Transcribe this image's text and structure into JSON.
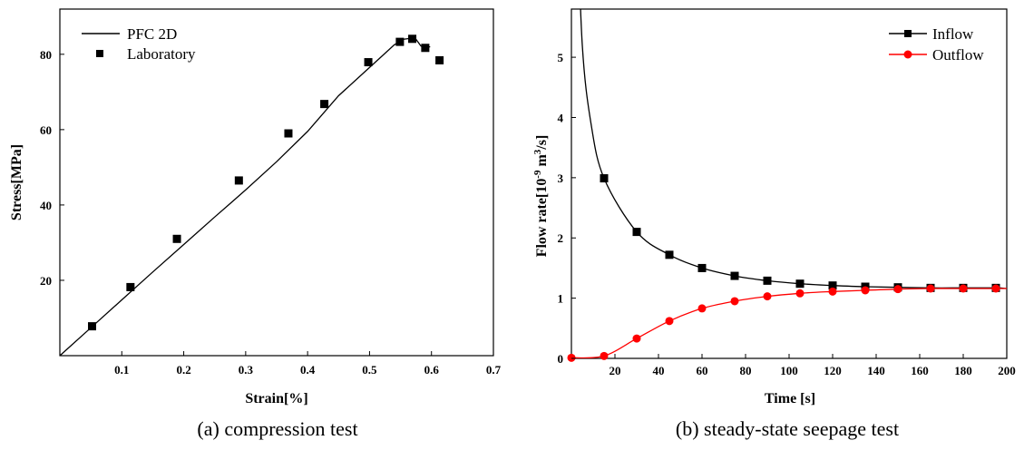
{
  "chart_data": [
    {
      "type": "line+scatter",
      "caption": "(a) compression test",
      "xlabel": "Strain[%]",
      "ylabel": "Stress[MPa]",
      "xlim": [
        0,
        0.7
      ],
      "ylim": [
        0,
        92
      ],
      "xticks": [
        "0.1",
        "0.2",
        "0.3",
        "0.4",
        "0.5",
        "0.6",
        "0.7"
      ],
      "yticks": [
        "20",
        "40",
        "60",
        "80"
      ],
      "legend_position": "top-left",
      "series": [
        {
          "name": "PFC 2D",
          "kind": "line",
          "x": [
            0,
            0.05,
            0.1,
            0.15,
            0.2,
            0.25,
            0.3,
            0.35,
            0.4,
            0.45,
            0.5,
            0.52,
            0.54,
            0.555,
            0.565,
            0.575,
            0.583,
            0.59,
            0.598
          ],
          "y": [
            0,
            7.4,
            14.8,
            22.2,
            29.5,
            36.8,
            44.0,
            51.5,
            59.5,
            69.0,
            76.5,
            79.5,
            82.5,
            84.0,
            84.2,
            84.0,
            82.2,
            81.8,
            82.0
          ]
        },
        {
          "name": "Laboratory",
          "kind": "scatter",
          "marker": "square",
          "x": [
            0.052,
            0.114,
            0.189,
            0.289,
            0.369,
            0.427,
            0.498,
            0.549,
            0.569,
            0.59,
            0.613
          ],
          "y": [
            7.8,
            18.2,
            31.0,
            46.5,
            59.0,
            66.8,
            77.9,
            83.3,
            84.1,
            81.7,
            78.4
          ]
        }
      ]
    },
    {
      "type": "line+scatter",
      "caption": "(b) steady-state seepage test",
      "xlabel": "Time [s]",
      "ylabel_parts": [
        "Flow rate[10",
        "-9",
        " m",
        "3",
        "/s]"
      ],
      "xlim": [
        0,
        200
      ],
      "ylim": [
        0,
        5.8
      ],
      "xticks": [
        "20",
        "40",
        "60",
        "80",
        "100",
        "120",
        "140",
        "160",
        "180",
        "200"
      ],
      "yticks": [
        "0",
        "1",
        "2",
        "3",
        "4",
        "5"
      ],
      "legend_position": "top-right",
      "series": [
        {
          "name": "Inflow",
          "color": "#000000",
          "marker": "square",
          "x": [
            15,
            30,
            45,
            60,
            75,
            90,
            105,
            120,
            135,
            150,
            165,
            180,
            195
          ],
          "y": [
            2.99,
            2.1,
            1.72,
            1.5,
            1.37,
            1.29,
            1.24,
            1.21,
            1.19,
            1.18,
            1.17,
            1.17,
            1.17
          ]
        },
        {
          "name": "Outflow",
          "color": "#ff0000",
          "marker": "circle",
          "x": [
            0,
            15,
            30,
            45,
            60,
            75,
            90,
            105,
            120,
            135,
            150,
            165,
            180,
            195
          ],
          "y": [
            0.01,
            0.04,
            0.33,
            0.62,
            0.83,
            0.95,
            1.03,
            1.08,
            1.11,
            1.13,
            1.15,
            1.16,
            1.16,
            1.16
          ]
        }
      ]
    }
  ]
}
